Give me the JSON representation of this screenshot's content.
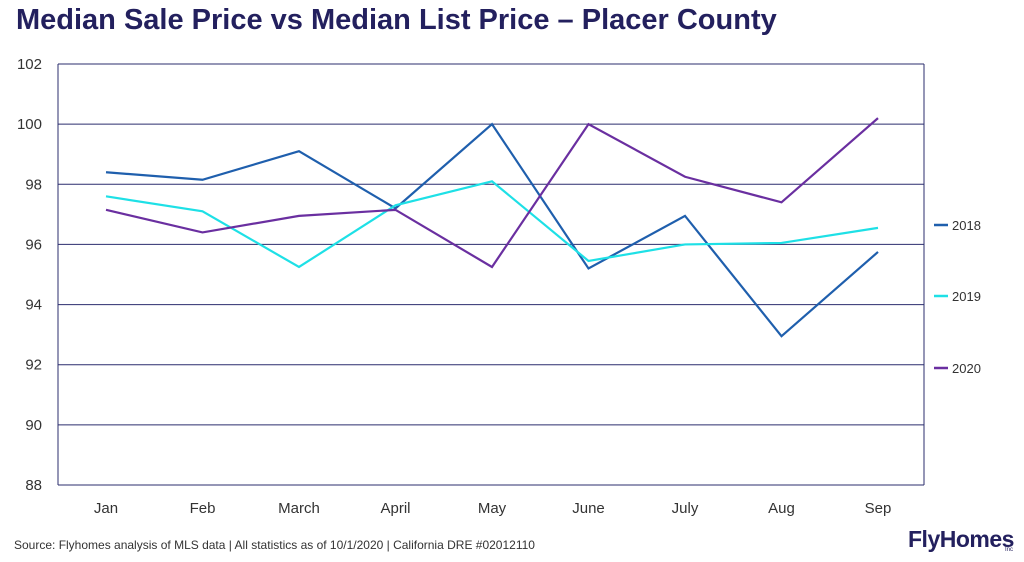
{
  "title": "Median Sale Price vs Median List Price – Placer County",
  "source": "Source: Flyhomes analysis of MLS data | All statistics as of 10/1/2020 | California DRE #02012110",
  "logo": {
    "text": "FlyHomes",
    "suffix": "Inc"
  },
  "colors": {
    "grid": "#2b2d6e",
    "title": "#23205e"
  },
  "chart_data": {
    "type": "line",
    "title": "Median Sale Price vs Median List Price – Placer County",
    "xlabel": "",
    "ylabel": "",
    "categories": [
      "Jan",
      "Feb",
      "March",
      "April",
      "May",
      "June",
      "July",
      "Aug",
      "Sep"
    ],
    "ylim": [
      88,
      102
    ],
    "yticks": [
      88,
      90,
      92,
      94,
      96,
      98,
      100,
      102
    ],
    "grid": true,
    "legend": "right",
    "series": [
      {
        "name": "2018",
        "color": "#1f5fad",
        "values": [
          98.4,
          98.15,
          99.1,
          97.2,
          100.0,
          95.2,
          96.95,
          92.95,
          95.75
        ]
      },
      {
        "name": "2019",
        "color": "#1ee0e6",
        "values": [
          97.6,
          97.1,
          95.25,
          97.3,
          98.1,
          95.45,
          96.0,
          96.05,
          96.55
        ]
      },
      {
        "name": "2020",
        "color": "#6a2fa0",
        "values": [
          97.15,
          96.4,
          96.95,
          97.15,
          95.25,
          100.0,
          98.25,
          97.4,
          100.2
        ]
      }
    ]
  }
}
